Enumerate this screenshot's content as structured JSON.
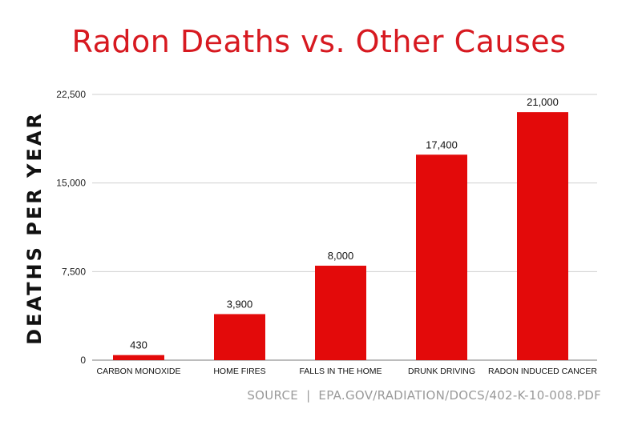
{
  "chart_data": {
    "type": "bar",
    "title": "Radon Deaths vs. Other Causes",
    "xlabel": "",
    "ylabel": "DEATHS PER YEAR",
    "categories": [
      "CARBON MONOXIDE",
      "HOME FIRES",
      "FALLS IN THE HOME",
      "DRUNK DRIVING",
      "RADON INDUCED CANCER"
    ],
    "values": [
      430,
      3900,
      8000,
      17400,
      21000
    ],
    "value_labels": [
      "430",
      "3,900",
      "8,000",
      "17,400",
      "21,000"
    ],
    "ylim": [
      0,
      22500
    ],
    "yticks": [
      0,
      7500,
      15000,
      22500
    ],
    "ytick_labels": [
      "0",
      "7,500",
      "15,000",
      "22,500"
    ],
    "grid": true,
    "bar_color": "#e30a0a",
    "title_color": "#d71920"
  },
  "source": {
    "label": "SOURCE",
    "separator": "|",
    "text": "EPA.GOV/RADIATION/DOCS/402-K-10-008.PDF"
  }
}
